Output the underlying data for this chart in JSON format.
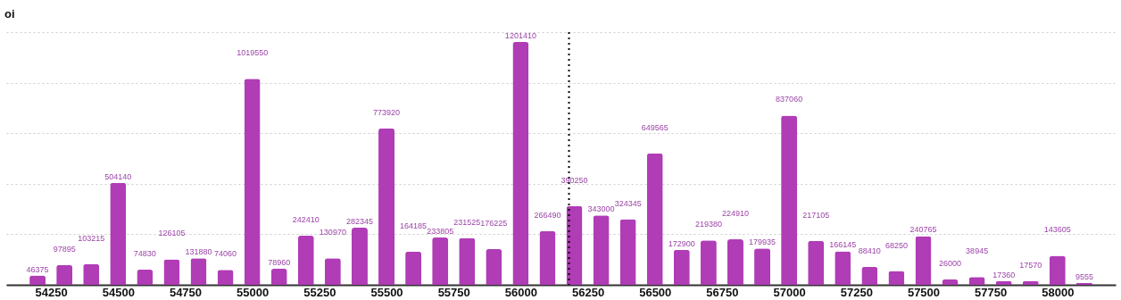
{
  "chart_data": {
    "type": "bar",
    "ylabel": "oi",
    "x": [
      54200,
      54300,
      54400,
      54500,
      54600,
      54700,
      54800,
      54900,
      55000,
      55100,
      55200,
      55300,
      55400,
      55500,
      55600,
      55700,
      55800,
      55900,
      56000,
      56100,
      56200,
      56300,
      56400,
      56500,
      56600,
      56700,
      56800,
      56900,
      57000,
      57100,
      57200,
      57300,
      57400,
      57500,
      57600,
      57700,
      57800,
      57900,
      58000,
      58100
    ],
    "values": [
      46375,
      97895,
      103215,
      504140,
      74830,
      126105,
      131880,
      74060,
      1019550,
      78960,
      242410,
      130970,
      282345,
      773920,
      164185,
      233805,
      231525,
      176225,
      1201410,
      266490,
      390250,
      343000,
      324345,
      649565,
      172900,
      219380,
      224910,
      179935,
      837060,
      217105,
      166145,
      88410,
      68250,
      240765,
      26000,
      38945,
      17360,
      17570,
      143605,
      9555
    ],
    "color": "#b03cb6",
    "data_labels": true,
    "xlim": [
      54100,
      58200
    ],
    "xticks": [
      54250,
      54500,
      54750,
      55000,
      55250,
      55500,
      55750,
      56000,
      56250,
      56500,
      56750,
      57000,
      57250,
      57500,
      57750,
      58000
    ],
    "ylim": [
      0,
      1250000
    ],
    "yticks": [
      {
        "value": 0,
        "label": null
      },
      {
        "value": 250000,
        "label": null
      },
      {
        "value": 500000,
        "label": null
      },
      {
        "value": 750000,
        "label": null
      },
      {
        "value": 1000000,
        "label": null
      },
      {
        "value": 1250000,
        "label": null
      }
    ],
    "tick_labels": "x",
    "grid": "y",
    "ref_lines": [
      {
        "axis": "x",
        "value": 56180,
        "line_style": "dotted",
        "color": "#000000"
      }
    ]
  }
}
